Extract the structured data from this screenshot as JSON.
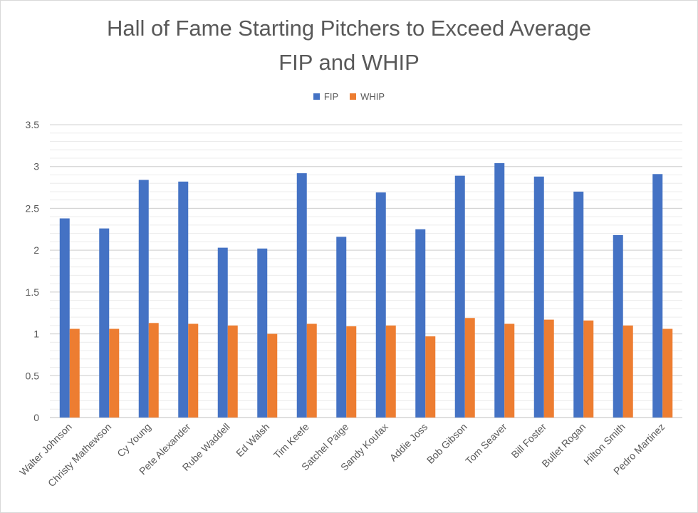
{
  "chart_data": {
    "type": "bar",
    "title_lines": [
      "Hall of Fame Starting Pitchers to Exceed Average",
      "FIP and WHIP"
    ],
    "xlabel": "",
    "ylabel": "",
    "ylim": [
      0,
      3.5
    ],
    "yticks": [
      "0",
      "0.5",
      "1",
      "1.5",
      "2",
      "2.5",
      "3",
      "3.5"
    ],
    "grid": true,
    "legend_position": "top",
    "categories": [
      "Walter Johnson",
      "Christy Mathewson",
      "Cy Young",
      "Pete  Alexander",
      "Rube Waddell",
      "Ed Walsh",
      "Tim Keefe",
      "Satchel Paige",
      "Sandy Koufax",
      "Addie Joss",
      "Bob Gibson",
      "Tom Seaver",
      "Bill Foster",
      "Bullet Rogan",
      "Hilton Smith",
      "Pedro Martinez"
    ],
    "series": [
      {
        "name": "FIP",
        "color": "#4472c4",
        "values": [
          2.38,
          2.26,
          2.84,
          2.82,
          2.03,
          2.02,
          2.92,
          2.16,
          2.69,
          2.25,
          2.89,
          3.04,
          2.88,
          2.7,
          2.18,
          2.91
        ]
      },
      {
        "name": "WHIP",
        "color": "#ed7d31",
        "values": [
          1.06,
          1.06,
          1.13,
          1.12,
          1.1,
          1.0,
          1.12,
          1.09,
          1.1,
          0.97,
          1.19,
          1.12,
          1.17,
          1.16,
          1.1,
          1.06
        ]
      }
    ]
  }
}
